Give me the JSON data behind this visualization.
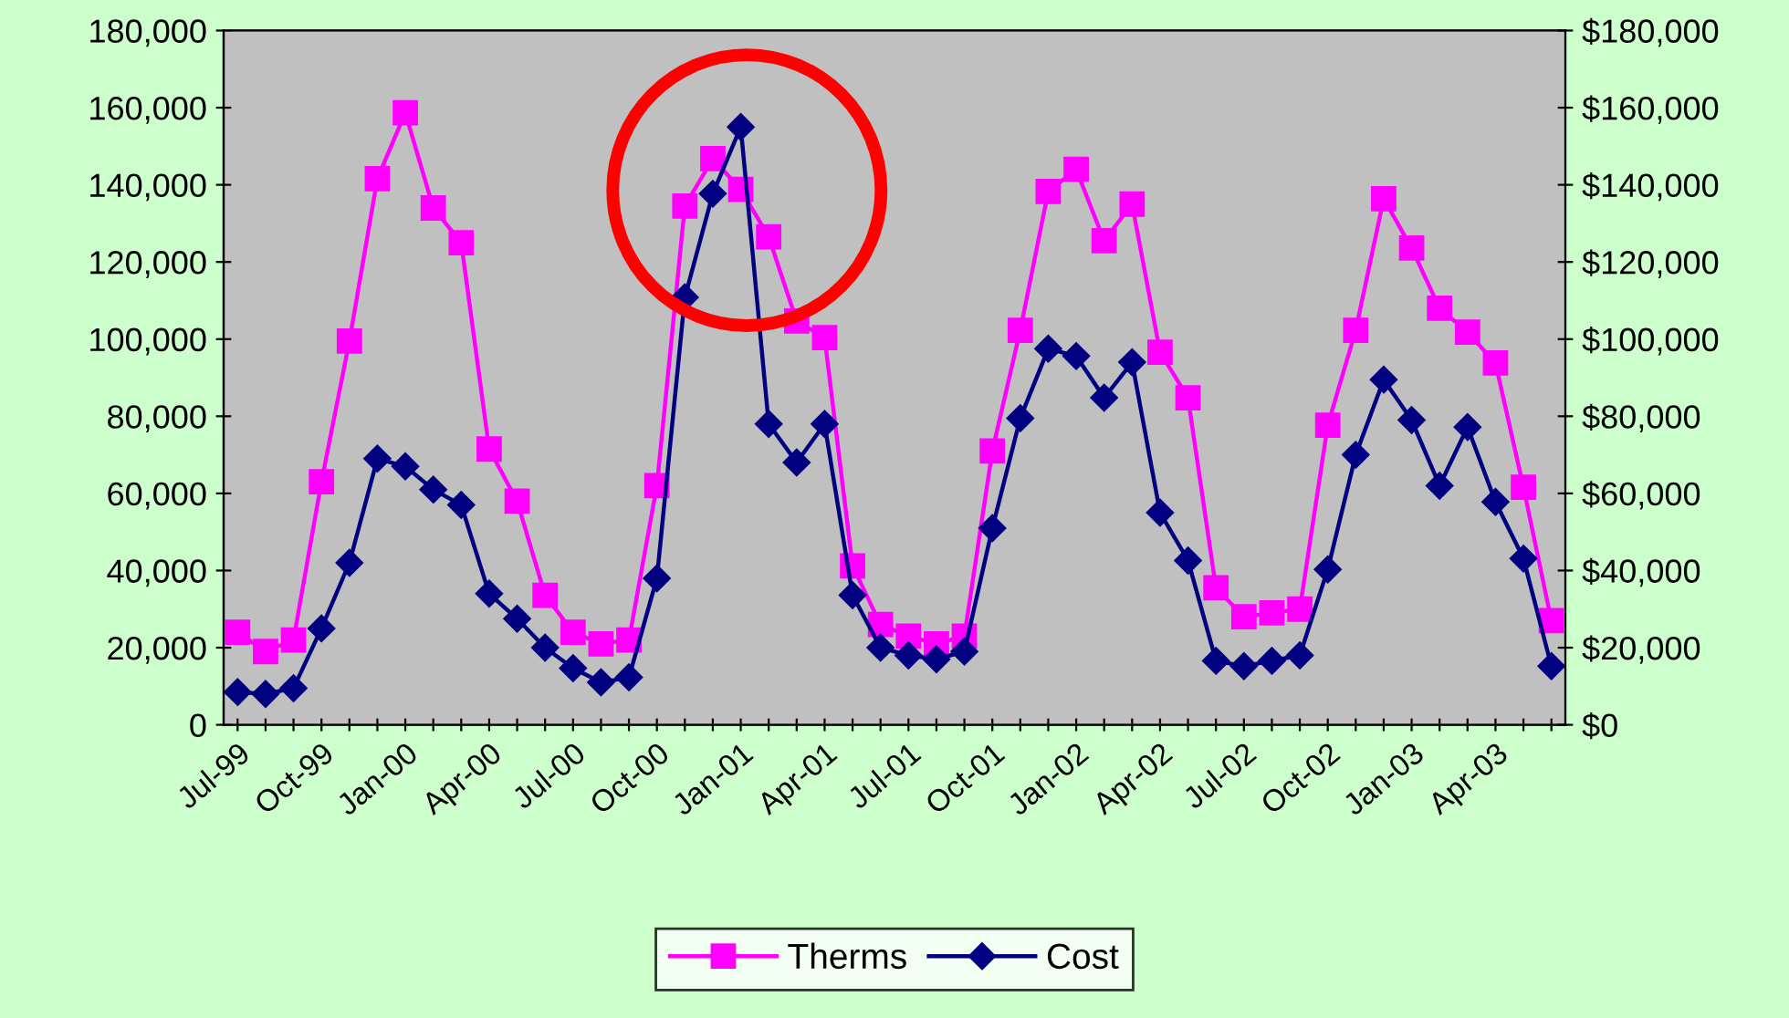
{
  "chart_data": {
    "type": "line",
    "categories": [
      "Jul-99",
      null,
      null,
      "Oct-99",
      null,
      null,
      "Jan-00",
      null,
      null,
      "Apr-00",
      null,
      null,
      "Jul-00",
      null,
      null,
      "Oct-00",
      null,
      null,
      "Jan-01",
      null,
      null,
      "Apr-01",
      null,
      null,
      "Jul-01",
      null,
      null,
      "Oct-01",
      null,
      null,
      "Jan-02",
      null,
      null,
      "Apr-02",
      null,
      null,
      "Jul-02",
      null,
      null,
      "Oct-02",
      null,
      null,
      "Jan-03",
      null,
      null,
      "Apr-03",
      null,
      null
    ],
    "series": [
      {
        "name": "Therms",
        "color": "#ff00ff",
        "marker": "square",
        "values": [
          24000,
          19000,
          22000,
          63000,
          99500,
          141600,
          158700,
          134000,
          125000,
          71500,
          58000,
          33600,
          24000,
          21000,
          22000,
          62000,
          134500,
          146800,
          138800,
          126500,
          104700,
          100400,
          41200,
          26000,
          23000,
          21000,
          23000,
          71000,
          102300,
          138300,
          144000,
          125500,
          135000,
          96600,
          84800,
          35500,
          28000,
          29000,
          30000,
          77700,
          102300,
          136400,
          123600,
          108000,
          101800,
          93800,
          61600,
          27000
        ]
      },
      {
        "name": "Cost",
        "color": "#000080",
        "marker": "diamond",
        "axis": "y2",
        "values": [
          8500,
          8000,
          9500,
          25000,
          42000,
          69000,
          67000,
          61000,
          57000,
          34000,
          27500,
          20000,
          14700,
          11000,
          12300,
          38000,
          110800,
          137700,
          155000,
          78000,
          68000,
          78000,
          33600,
          20000,
          18000,
          17000,
          19000,
          51000,
          79500,
          97500,
          95600,
          84800,
          94000,
          55000,
          42600,
          16600,
          15200,
          16600,
          18000,
          40300,
          70000,
          89500,
          79000,
          62000,
          77200,
          57800,
          43100,
          15200
        ]
      }
    ],
    "ylim": [
      0,
      180000
    ],
    "yticks": [
      {
        "value": 0,
        "label": "0"
      },
      {
        "value": 20000,
        "label": "20,000"
      },
      {
        "value": 40000,
        "label": "40,000"
      },
      {
        "value": 60000,
        "label": "60,000"
      },
      {
        "value": 80000,
        "label": "80,000"
      },
      {
        "value": 100000,
        "label": "100,000"
      },
      {
        "value": 120000,
        "label": "120,000"
      },
      {
        "value": 140000,
        "label": "140,000"
      },
      {
        "value": 160000,
        "label": "160,000"
      },
      {
        "value": 180000,
        "label": "180,000"
      }
    ],
    "y2lim": [
      0,
      180000
    ],
    "y2ticks": [
      {
        "value": 0,
        "label": "$0"
      },
      {
        "value": 20000,
        "label": "$20,000"
      },
      {
        "value": 40000,
        "label": "$40,000"
      },
      {
        "value": 60000,
        "label": "$60,000"
      },
      {
        "value": 80000,
        "label": "$80,000"
      },
      {
        "value": 100000,
        "label": "$100,000"
      },
      {
        "value": 120000,
        "label": "$120,000"
      },
      {
        "value": 140000,
        "label": "$140,000"
      },
      {
        "value": 160000,
        "label": "$160,000"
      },
      {
        "value": 180000,
        "label": "$180,000"
      }
    ],
    "grid": false,
    "legend": "bottom",
    "line_style": "solid"
  }
}
